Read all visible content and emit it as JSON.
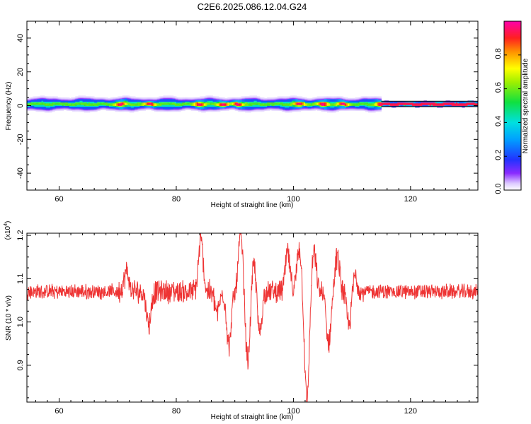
{
  "title": "C2E6.2025.086.12.04.G24",
  "chart_data": [
    {
      "type": "heatmap",
      "xlabel": "Height of straight line (km)",
      "ylabel": "Frequency (Hz)",
      "xlim": [
        54.5,
        131.5
      ],
      "ylim": [
        -50,
        50
      ],
      "x_ticks": [
        60,
        80,
        100,
        120
      ],
      "y_ticks": [
        -40,
        -20,
        0,
        20,
        40
      ],
      "colorbar": {
        "label": "Normalized spectral amplitude",
        "range": [
          0,
          1
        ],
        "ticks": [
          0.0,
          0.2,
          0.4,
          0.6,
          0.8
        ],
        "colormap": "rainbow (purple-blue-cyan-green-yellow-red-magenta)"
      },
      "band_center_hz": 1,
      "band_halfwidth_hz": [
        2,
        3
      ],
      "band_tail_start_km": 115,
      "band_tail_halfwidth_hz": 1.5,
      "hotspots_km": [
        70.5,
        75.5,
        84,
        88,
        90.5,
        101,
        105,
        108.5,
        115,
        120,
        125,
        130
      ]
    },
    {
      "type": "line",
      "xlabel": "Height of straight line (km)",
      "ylabel": "SNR (10 * v/v)",
      "y_multiplier": "(x10^4)",
      "xlim": [
        54.5,
        131.5
      ],
      "ylim": [
        0.815,
        1.205
      ],
      "x_ticks": [
        60,
        80,
        100,
        120
      ],
      "y_ticks": [
        0.9,
        1.0,
        1.1,
        1.2
      ],
      "series": [
        {
          "color": "#ee3333",
          "baseline": 1.07,
          "noise": 0.015,
          "features": [
            {
              "x": 71.5,
              "y": 1.115
            },
            {
              "x": 75.3,
              "y": 0.995
            },
            {
              "x": 84.2,
              "y": 1.19
            },
            {
              "x": 87.0,
              "y": 1.02
            },
            {
              "x": 89.0,
              "y": 0.945
            },
            {
              "x": 91.0,
              "y": 1.2
            },
            {
              "x": 92.2,
              "y": 0.91
            },
            {
              "x": 93.3,
              "y": 1.14
            },
            {
              "x": 94.2,
              "y": 0.97
            },
            {
              "x": 99.0,
              "y": 1.16
            },
            {
              "x": 101.0,
              "y": 1.17
            },
            {
              "x": 102.3,
              "y": 0.815
            },
            {
              "x": 103.5,
              "y": 1.16
            },
            {
              "x": 106.0,
              "y": 0.95
            },
            {
              "x": 107.5,
              "y": 1.15
            },
            {
              "x": 109.5,
              "y": 0.99
            },
            {
              "x": 110.5,
              "y": 1.11
            }
          ]
        }
      ]
    }
  ]
}
